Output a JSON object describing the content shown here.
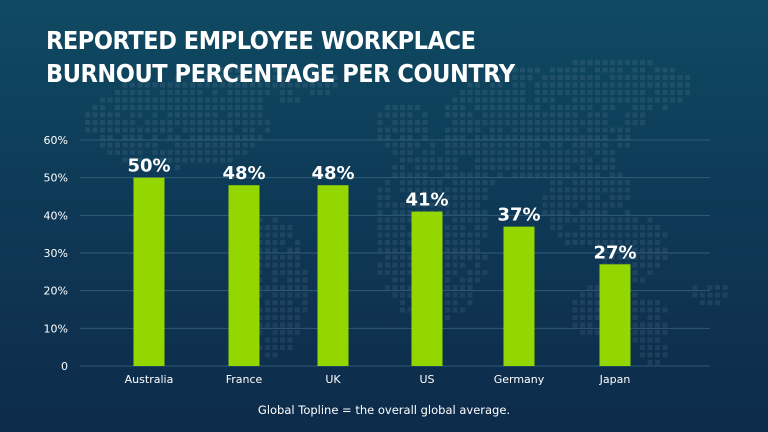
{
  "title": {
    "line1": "REPORTED EMPLOYEE WORKPLACE",
    "line2": "BURNOUT PERCENTAGE PER COUNTRY"
  },
  "chart_data": {
    "type": "bar",
    "title": "REPORTED EMPLOYEE WORKPLACE BURNOUT PERCENTAGE PER COUNTRY",
    "categories": [
      "Australia",
      "France",
      "UK",
      "US",
      "Germany",
      "Japan"
    ],
    "values": [
      50,
      48,
      48,
      41,
      37,
      27
    ],
    "data_labels": [
      "50%",
      "48%",
      "48%",
      "41%",
      "37%",
      "27%"
    ],
    "y_ticks": [
      "0",
      "10%",
      "20%",
      "30%",
      "40%",
      "50%",
      "60%"
    ],
    "ylim": [
      0,
      60
    ],
    "xlabel": "",
    "ylabel": "",
    "grid": true,
    "legend": "none",
    "bar_color": "#94d600",
    "grid_color": "#4a7590",
    "background_color": "#0e3a57"
  },
  "footnote": "Global Topline = the overall global average."
}
